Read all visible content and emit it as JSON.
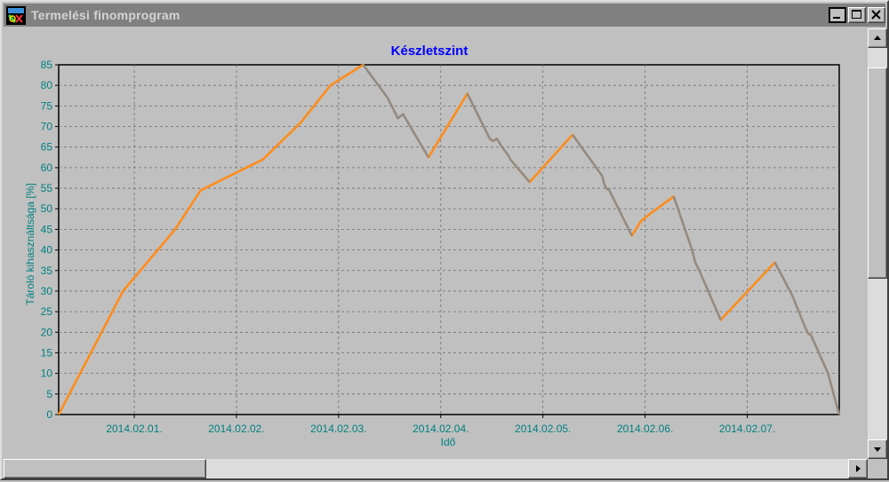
{
  "window": {
    "title": "Termelési finomprogram",
    "icon": "app-logo-icon",
    "buttons": [
      "minimize-icon",
      "maximize-icon",
      "close-icon"
    ]
  },
  "chart_data": {
    "type": "line",
    "title": "Készletszint",
    "xlabel": "Idő",
    "ylabel": "Tároló kihasználtsága [%]",
    "ylim": [
      0,
      85
    ],
    "yticks": [
      0,
      5,
      10,
      15,
      20,
      25,
      30,
      35,
      40,
      45,
      50,
      55,
      60,
      65,
      70,
      75,
      80,
      85
    ],
    "xlim": [
      0.26,
      7.9
    ],
    "xticks": [
      {
        "value": 1,
        "label": "2014.02.01."
      },
      {
        "value": 2,
        "label": "2014.02.02."
      },
      {
        "value": 3,
        "label": "2014.02.03."
      },
      {
        "value": 4,
        "label": "2014.02.04."
      },
      {
        "value": 5,
        "label": "2014.02.05."
      },
      {
        "value": 6,
        "label": "2014.02.06."
      },
      {
        "value": 7,
        "label": "2014.02.07."
      }
    ],
    "grid": true,
    "series": [
      {
        "color": "#ff8c1a",
        "x": [
          0.26,
          0.89,
          1.4,
          1.65,
          2.26,
          2.63,
          2.92,
          3.24,
          3.48,
          3.56,
          3.58,
          3.63,
          3.88,
          4.26,
          4.38,
          4.48,
          4.51,
          4.55,
          4.6,
          4.66,
          4.68,
          4.87,
          5.29,
          5.58,
          5.6,
          5.62,
          5.65,
          5.87,
          5.96,
          6.06,
          6.28,
          6.46,
          6.49,
          6.53,
          6.74,
          7.27,
          7.44,
          7.57,
          7.6,
          7.62,
          7.79,
          7.9
        ],
        "y": [
          0,
          30,
          45,
          54.5,
          62,
          71,
          80,
          85,
          77,
          73,
          72,
          73,
          62.5,
          78,
          72,
          67,
          66.5,
          67,
          65,
          63,
          62,
          56.5,
          68,
          58,
          56,
          55,
          54.5,
          43.5,
          47,
          49,
          53,
          40,
          37,
          35,
          23,
          37,
          29,
          21,
          19.5,
          19.5,
          10,
          0
        ]
      },
      {
        "color": "#8c8c8c",
        "x": [
          3.24,
          3.48,
          3.56,
          3.58,
          3.63,
          3.88
        ],
        "y": [
          85,
          77,
          73,
          72,
          73,
          62.5
        ]
      },
      {
        "color": "#8c8c8c",
        "x": [
          4.26,
          4.38,
          4.48,
          4.51,
          4.55,
          4.6,
          4.66,
          4.68,
          4.87
        ],
        "y": [
          78,
          72,
          67,
          66.5,
          67,
          65,
          63,
          62,
          56.5
        ]
      },
      {
        "color": "#8c8c8c",
        "x": [
          5.29,
          5.58,
          5.6,
          5.62,
          5.65,
          5.87
        ],
        "y": [
          68,
          58,
          56,
          55,
          54.5,
          43.5
        ]
      },
      {
        "color": "#8c8c8c",
        "x": [
          6.28,
          6.46,
          6.49,
          6.53,
          6.74
        ],
        "y": [
          53,
          40,
          37,
          35,
          23
        ]
      },
      {
        "color": "#8c8c8c",
        "x": [
          7.27,
          7.44,
          7.57,
          7.6,
          7.62,
          7.79,
          7.9
        ],
        "y": [
          37,
          29,
          21,
          19.5,
          19.5,
          10,
          0
        ]
      }
    ]
  },
  "scrollbars": {
    "vertical_thumb_fraction_start": 0.05,
    "vertical_thumb_fraction_size": 0.54,
    "horizontal_thumb_fraction_start": 0.0,
    "horizontal_thumb_fraction_size": 0.24
  }
}
